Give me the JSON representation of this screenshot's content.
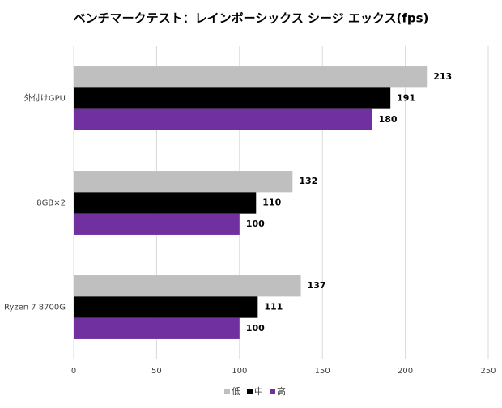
{
  "chart_data": {
    "type": "bar",
    "orientation": "horizontal",
    "title": "ベンチマークテスト：レインボーシックス シージ エックス(fps)",
    "categories": [
      "外付けGPU",
      "8GB×2",
      "Ryzen 7 8700G"
    ],
    "series": [
      {
        "name": "低",
        "color": "#bfbfbf",
        "values": [
          213,
          132,
          137
        ]
      },
      {
        "name": "中",
        "color": "#000000",
        "values": [
          191,
          110,
          111
        ]
      },
      {
        "name": "高",
        "color": "#7030a0",
        "values": [
          180,
          100,
          100
        ]
      }
    ],
    "xlim": [
      0,
      250
    ],
    "xticks": [
      0,
      50,
      100,
      150,
      200,
      250
    ],
    "grid": true,
    "legend": "bottom"
  }
}
